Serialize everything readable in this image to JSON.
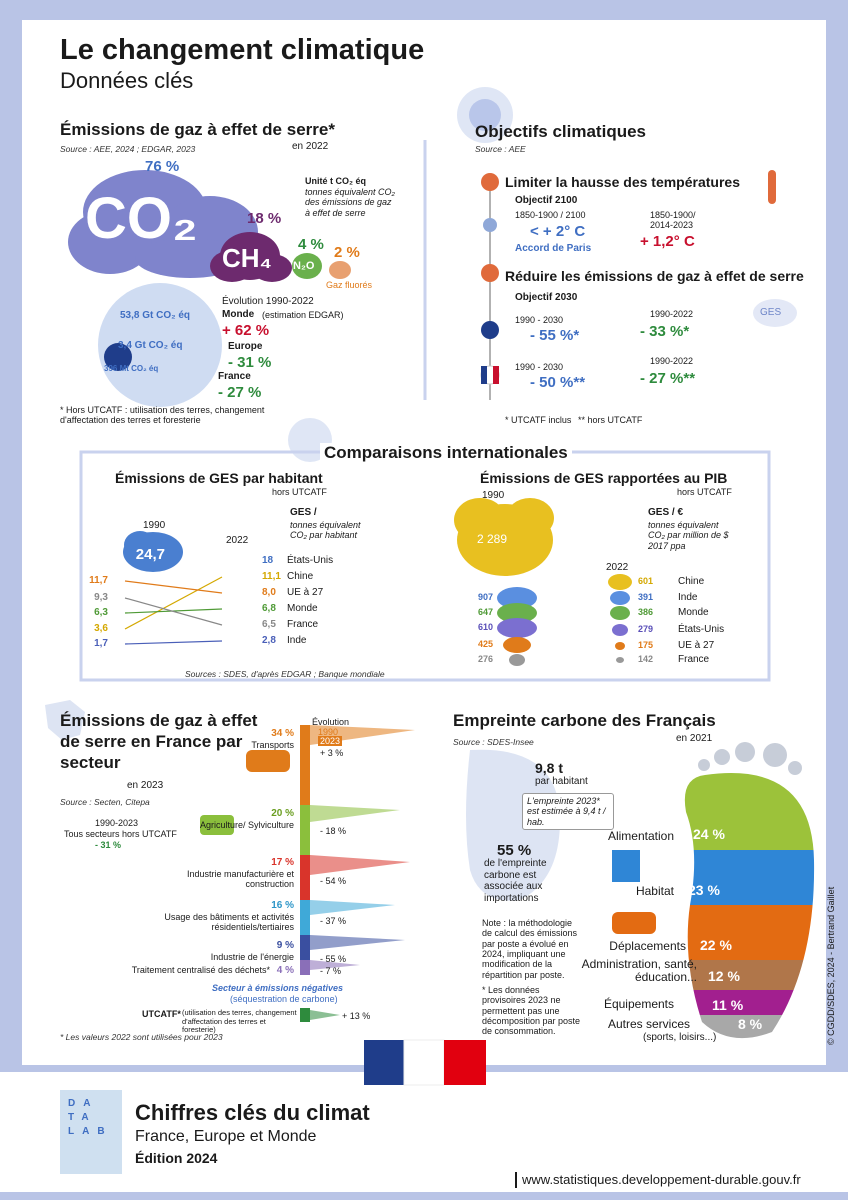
{
  "header": {
    "title": "Le changement climatique",
    "subtitle": "Données clés"
  },
  "emissions": {
    "title": "Émissions de gaz à effet de serre*",
    "year": "en 2022",
    "source": "Source : AEE, 2024 ; EDGAR, 2023",
    "unit_title": "Unité t CO₂ éq",
    "unit_text": "tonnes équivalent CO₂ des émissions de gaz à effet de serre",
    "gases": [
      {
        "share": "76 %",
        "name": "CO₂"
      },
      {
        "share": "18 %",
        "name": "CH₄"
      },
      {
        "share": "4 %",
        "name": "N₂O"
      },
      {
        "share": "2 %",
        "name": "Gaz fluorés"
      }
    ],
    "evolution_title": "Évolution 1990-2022",
    "regions": [
      {
        "total": "53,8 Gt CO₂ éq",
        "name": "Monde",
        "note": "(estimation EDGAR)",
        "change": "+ 62 %"
      },
      {
        "total": "3,4 Gt CO₂ éq",
        "name": "Europe",
        "change": "- 31 %"
      },
      {
        "total": "396 Mt CO₂ éq",
        "name": "France",
        "change": "- 27 %"
      }
    ],
    "footnote": "* Hors UTCATF : utilisation des terres, changement d'affectation des terres et foresterie"
  },
  "objectives": {
    "title": "Objectifs climatiques",
    "source": "Source : AEE",
    "temp": {
      "title": "Limiter la hausse des températures",
      "objective": "Objectif 2100",
      "period": "1850-1900 / 2100",
      "target": "< + 2° C",
      "agreement": "Accord de Paris",
      "obs_period": "1850-1900/ 2014-2023",
      "observed": "+ 1,2° C"
    },
    "ghg": {
      "title": "Réduire les émissions de gaz à effet de serre",
      "objective": "Objectif 2030",
      "badge": "GES",
      "rows": [
        {
          "period": "1990 - 2030",
          "target": "- 55 %*",
          "obs_period": "1990-2022",
          "observed": "- 33 %*"
        },
        {
          "period": "1990 - 2030",
          "target": "- 50 %**",
          "obs_period": "1990-2022",
          "observed": "- 27 %**"
        }
      ]
    },
    "notes": [
      "* UTCATF inclus",
      "** hors UTCATF"
    ]
  },
  "international": {
    "title": "Comparaisons internationales",
    "per_capita": {
      "title": "Émissions de GES par habitant",
      "subtitle": "hors UTCATF",
      "unit_title": "GES /",
      "unit_text": "tonnes équivalent CO₂ par habitant",
      "year_a": "1990",
      "year_b": "2022",
      "rows": [
        {
          "country": "États-Unis",
          "v1990": "24,7",
          "v2022": "18"
        },
        {
          "country": "Chine",
          "v1990": "3,6",
          "v2022": "11,1"
        },
        {
          "country": "UE à 27",
          "v1990": "11,7",
          "v2022": "8,0"
        },
        {
          "country": "Monde",
          "v1990": "6,3",
          "v2022": "6,8"
        },
        {
          "country": "France",
          "v1990": "9,3",
          "v2022": "6,5"
        },
        {
          "country": "Inde",
          "v1990": "1,7",
          "v2022": "2,8"
        }
      ]
    },
    "per_gdp": {
      "title": "Émissions de GES rapportées au PIB",
      "subtitle": "hors UTCATF",
      "unit_title": "GES / €",
      "unit_text": "tonnes équivalent CO₂ par million de $ 2017 ppa",
      "year_a": "1990",
      "year_b": "2022",
      "rows": [
        {
          "country": "Chine",
          "v1990": "2 289",
          "v2022": "601"
        },
        {
          "country": "Inde",
          "v1990": "907",
          "v2022": "391"
        },
        {
          "country": "Monde",
          "v1990": "647",
          "v2022": "386"
        },
        {
          "country": "États-Unis",
          "v1990": "610",
          "v2022": "279"
        },
        {
          "country": "UE à 27",
          "v1990": "425",
          "v2022": "175"
        },
        {
          "country": "France",
          "v1990": "276",
          "v2022": "142"
        }
      ]
    },
    "sources": "Sources : SDES, d'après EDGAR ; Banque mondiale"
  },
  "sectors": {
    "title": "Émissions de gaz à effet de serre en France par secteur",
    "year": "en 2023",
    "source": "Source : Secten, Citepa",
    "evolution": "Évolution",
    "legend": [
      "1990",
      "2023"
    ],
    "total_box": {
      "period": "1990-2023",
      "label": "Tous secteurs hors UTCATF",
      "change": "- 31 %"
    },
    "items": [
      {
        "share": "34 %",
        "name": "Transports",
        "change": "+ 3 %"
      },
      {
        "share": "20 %",
        "name": "Agriculture/ Sylviculture",
        "change": "- 18 %"
      },
      {
        "share": "17 %",
        "name": "Industrie manufacturière et construction",
        "change": "- 54 %"
      },
      {
        "share": "16 %",
        "name": "Usage des bâtiments et activités résidentiels/tertiaires",
        "change": "- 37 %"
      },
      {
        "share": "9 %",
        "name": "Industrie de l'énergie",
        "change": "- 55 %"
      },
      {
        "share": "4 %",
        "name": "Traitement centralisé des déchets*",
        "change": "- 7 %"
      }
    ],
    "negative_title": "Secteur à émissions négatives",
    "negative_sub": "(séquestration de carbone)",
    "utcatf": {
      "name": "UTCATF*",
      "note": "(utilisation des terres, changement d'affectation des terres et foresterie)",
      "change": "+ 13 %"
    },
    "footnote": "* Les valeurs 2022 sont utilisées pour 2023"
  },
  "footprint": {
    "title": "Empreinte carbone des Français",
    "year": "en 2021",
    "source": "Source : SDES-Insee",
    "per_capita": "9,8 t",
    "per_capita_label": "par habitant",
    "estimate": "L'empreinte 2023* est estimée à 9,4 t / hab.",
    "imports_share": "55 %",
    "imports_text": "de l'empreinte carbone est associée aux importations",
    "note": "Note : la méthodologie de calcul des émissions par poste a évolué en 2024, impliquant une modification de la répartition par poste.",
    "note2": "* Les données provisoires 2023 ne permettent pas une décomposition par poste de consommation.",
    "items": [
      {
        "name": "Alimentation",
        "share": "24 %"
      },
      {
        "name": "Habitat",
        "share": "23 %"
      },
      {
        "name": "Déplacements",
        "share": "22 %"
      },
      {
        "name": "Administration, santé, éducation...",
        "share": "12 %"
      },
      {
        "name": "Équipements",
        "share": "11 %"
      },
      {
        "name": "Autres services",
        "share": "8 %",
        "sub": "(sports, loisirs...)"
      }
    ]
  },
  "credit": "© CGDD/SDES, 2024 - Bertrand Gaillet",
  "footer": {
    "cover": [
      "DA",
      "TA",
      "LAB"
    ],
    "title": "Chiffres clés du climat",
    "subtitle": "France, Europe et Monde",
    "edition": "Édition 2024",
    "url": "www.statistiques.developpement-durable.gouv.fr"
  }
}
